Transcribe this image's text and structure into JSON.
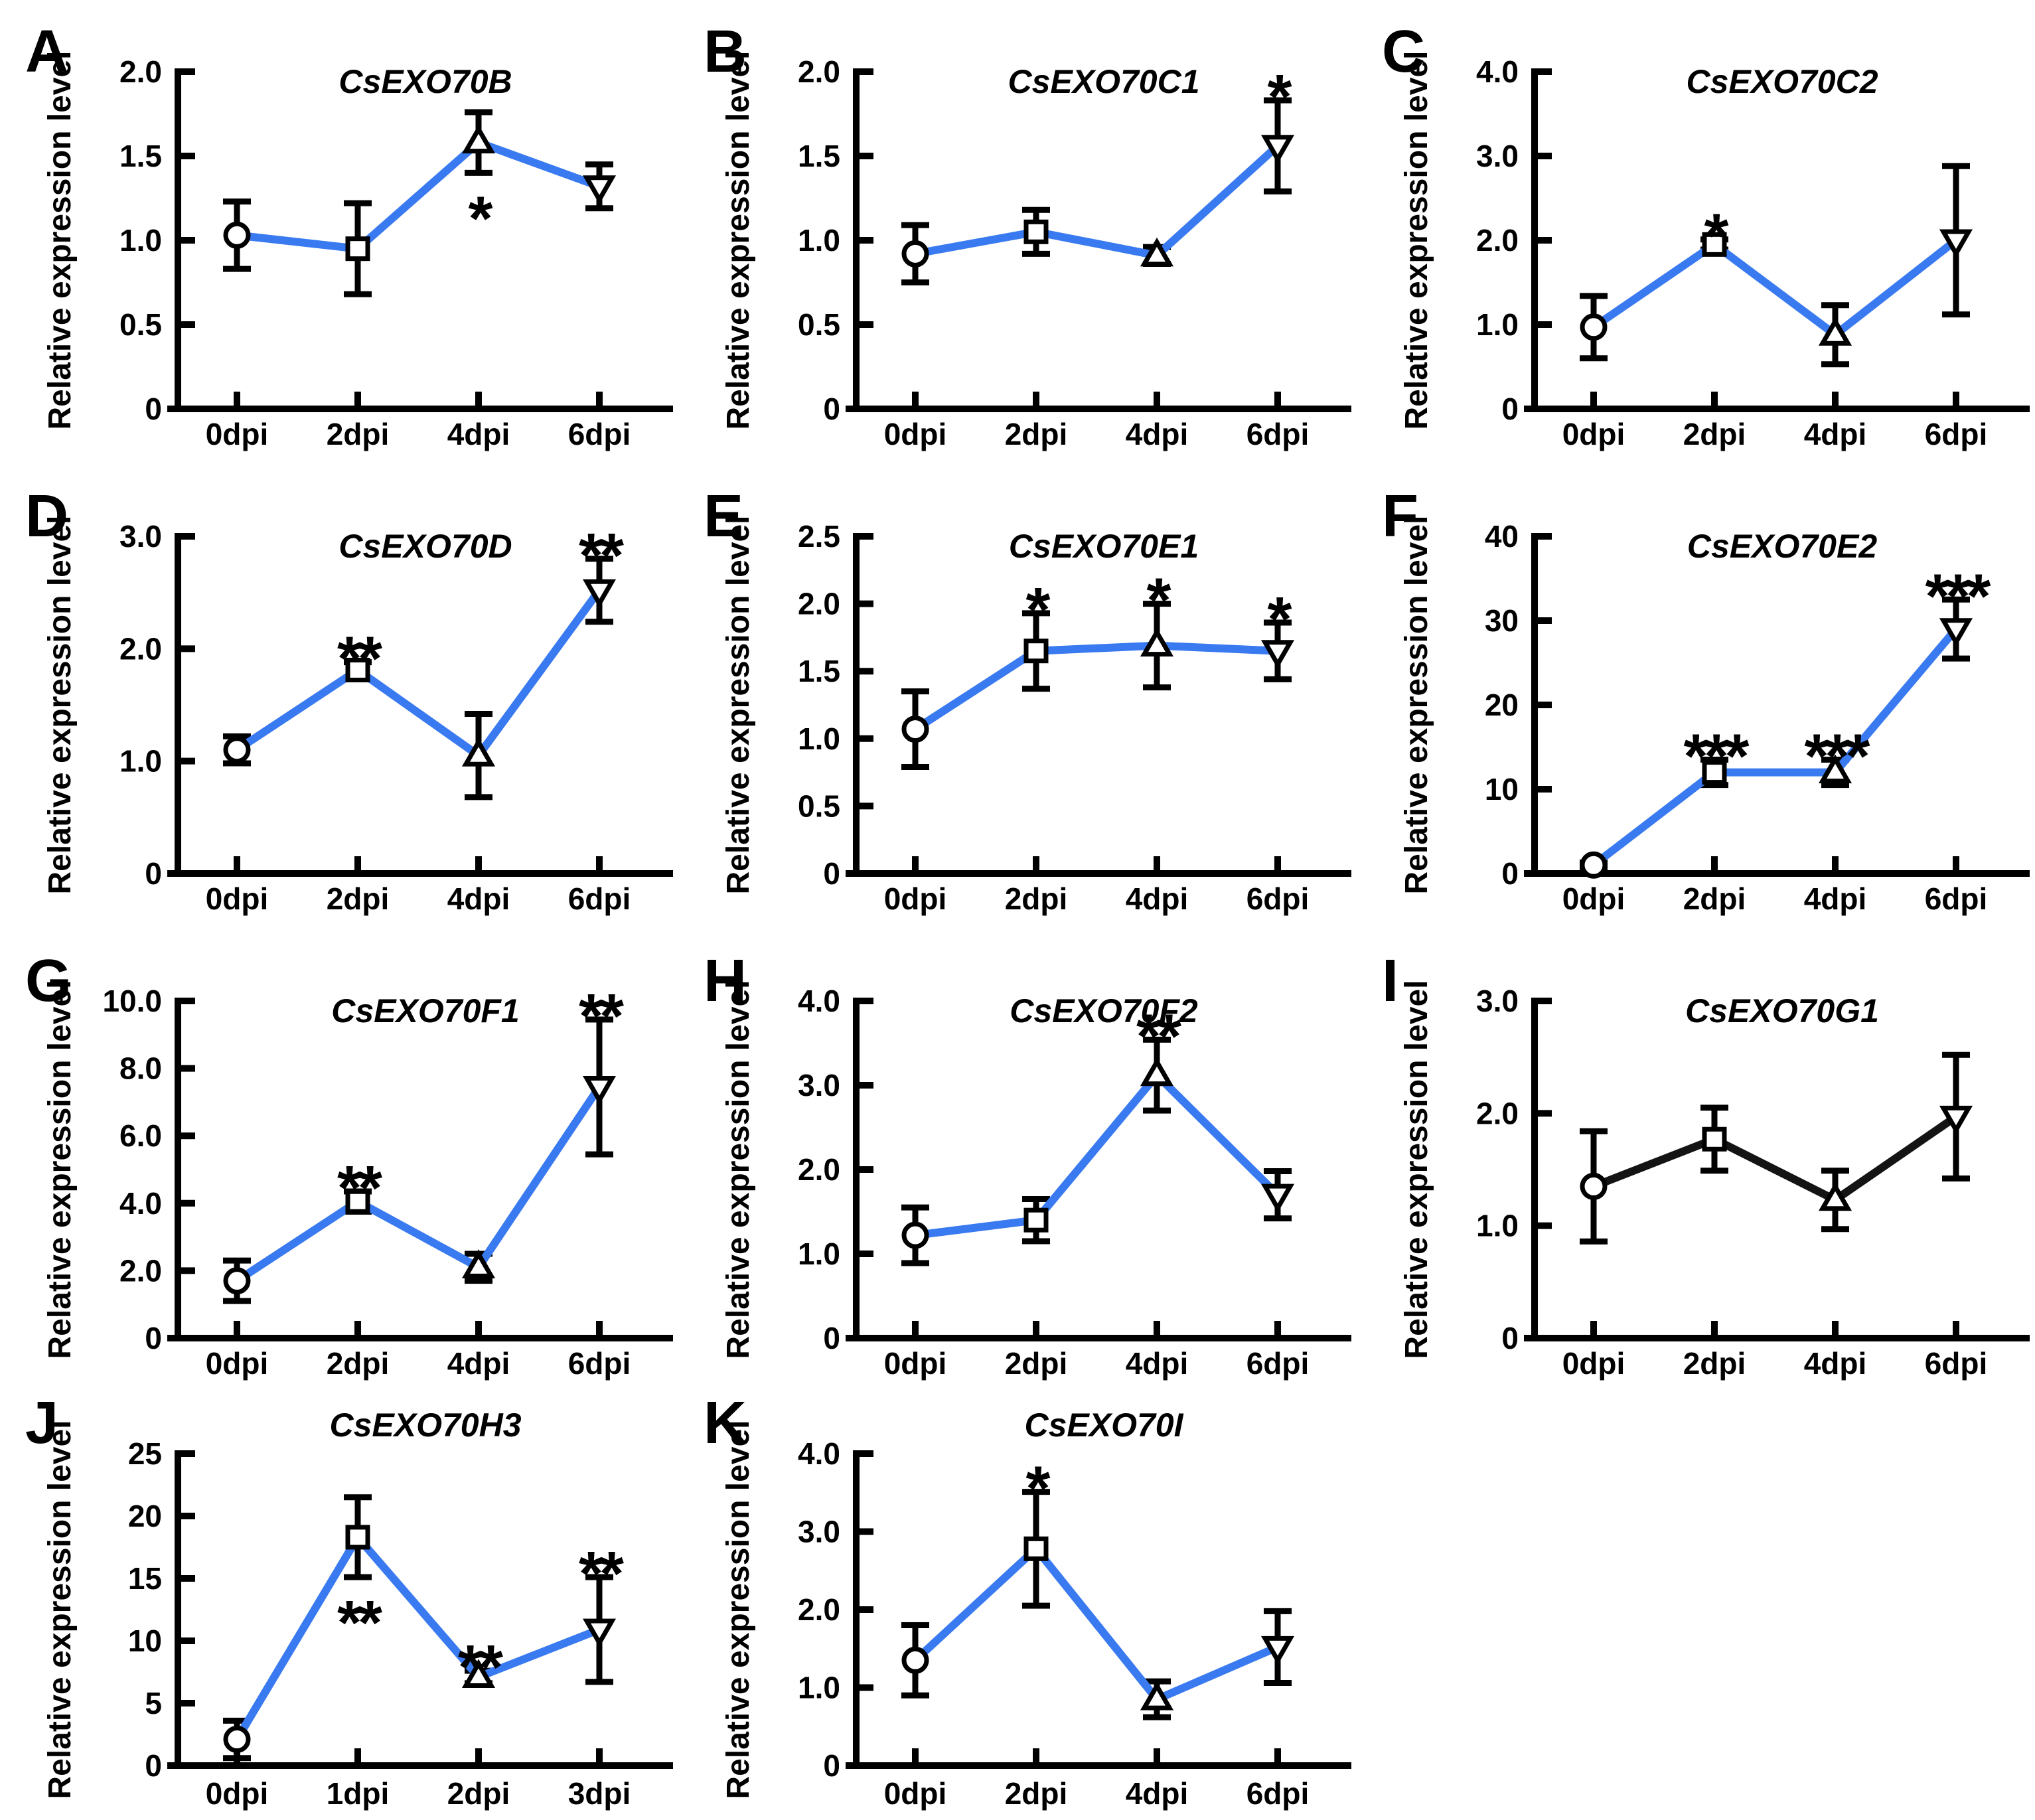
{
  "figure": {
    "ylabel": "Relative expression level",
    "background": "#ffffff"
  },
  "colors": {
    "line_blue": "#3A7AF0",
    "line_black": "#141414",
    "axis_black": "#000000",
    "marker_fill": "#ffffff",
    "text_black": "#000000"
  },
  "marker_icons": [
    "circle-marker-icon",
    "square-marker-icon",
    "triangle-up-marker-icon",
    "triangle-down-marker-icon"
  ],
  "chart_data": [
    {
      "type": "line",
      "panel": "A",
      "title": "CsEXO70B",
      "categories": [
        "0dpi",
        "2dpi",
        "4dpi",
        "6dpi"
      ],
      "values": [
        1.03,
        0.95,
        1.58,
        1.32
      ],
      "errors": [
        0.2,
        0.27,
        0.18,
        0.13
      ],
      "ylim": [
        0,
        2.0
      ],
      "yticks": [
        0,
        0.5,
        1.0,
        1.5,
        2.0
      ],
      "ytick_labels": [
        "0",
        "0.5",
        "1.0",
        "1.5",
        "2.0"
      ],
      "significance": [
        "",
        "",
        "*",
        ""
      ],
      "sig_side": [
        "",
        "",
        "below",
        ""
      ],
      "line_color": "blue",
      "grid": false,
      "legend": "none"
    },
    {
      "type": "line",
      "panel": "B",
      "title": "CsEXO70C1",
      "categories": [
        "0dpi",
        "2dpi",
        "4dpi",
        "6dpi"
      ],
      "values": [
        0.92,
        1.05,
        0.91,
        1.56
      ],
      "errors": [
        0.17,
        0.13,
        0.05,
        0.27
      ],
      "ylim": [
        0,
        2.0
      ],
      "yticks": [
        0,
        0.5,
        1.0,
        1.5,
        2.0
      ],
      "ytick_labels": [
        "0",
        "0.5",
        "1.0",
        "1.5",
        "2.0"
      ],
      "significance": [
        "",
        "",
        "",
        "*"
      ],
      "sig_side": [
        "",
        "",
        "",
        "above"
      ],
      "line_color": "blue",
      "grid": false,
      "legend": "none"
    },
    {
      "type": "line",
      "panel": "C",
      "title": "CsEXO70C2",
      "categories": [
        "0dpi",
        "2dpi",
        "4dpi",
        "6dpi"
      ],
      "values": [
        0.97,
        1.95,
        0.88,
        2.0
      ],
      "errors": [
        0.37,
        0.06,
        0.35,
        0.88
      ],
      "ylim": [
        0,
        4.0
      ],
      "yticks": [
        0,
        1.0,
        2.0,
        3.0,
        4.0
      ],
      "ytick_labels": [
        "0",
        "1.0",
        "2.0",
        "3.0",
        "4.0"
      ],
      "significance": [
        "",
        "*",
        "",
        ""
      ],
      "sig_side": [
        "",
        "above",
        "",
        ""
      ],
      "line_color": "blue",
      "grid": false,
      "legend": "none"
    },
    {
      "type": "line",
      "panel": "D",
      "title": "CsEXO70D",
      "categories": [
        "0dpi",
        "2dpi",
        "4dpi",
        "6dpi"
      ],
      "values": [
        1.1,
        1.81,
        1.05,
        2.52
      ],
      "errors": [
        0.12,
        0.07,
        0.37,
        0.28
      ],
      "ylim": [
        0,
        3.0
      ],
      "yticks": [
        0,
        1.0,
        2.0,
        3.0
      ],
      "ytick_labels": [
        "0",
        "1.0",
        "2.0",
        "3.0"
      ],
      "significance": [
        "",
        "**",
        "",
        "**"
      ],
      "sig_side": [
        "",
        "above",
        "",
        "above"
      ],
      "line_color": "blue",
      "grid": false,
      "legend": "none"
    },
    {
      "type": "line",
      "panel": "E",
      "title": "CsEXO70E1",
      "categories": [
        "0dpi",
        "2dpi",
        "4dpi",
        "6dpi"
      ],
      "values": [
        1.07,
        1.65,
        1.69,
        1.65
      ],
      "errors": [
        0.28,
        0.28,
        0.31,
        0.21
      ],
      "ylim": [
        0,
        2.5
      ],
      "yticks": [
        0,
        0.5,
        1.0,
        1.5,
        2.0,
        2.5
      ],
      "ytick_labels": [
        "0",
        "0.5",
        "1.0",
        "1.5",
        "2.0",
        "2.5"
      ],
      "significance": [
        "",
        "*",
        "*",
        "*"
      ],
      "sig_side": [
        "",
        "above",
        "above",
        "above"
      ],
      "line_color": "blue",
      "grid": false,
      "legend": "none"
    },
    {
      "type": "line",
      "panel": "F",
      "title": "CsEXO70E2",
      "categories": [
        "0dpi",
        "2dpi",
        "4dpi",
        "6dpi"
      ],
      "values": [
        1.0,
        12.0,
        12.0,
        29.0
      ],
      "errors": [
        0.3,
        1.5,
        1.5,
        3.5
      ],
      "ylim": [
        0,
        40
      ],
      "yticks": [
        0,
        10,
        20,
        30,
        40
      ],
      "ytick_labels": [
        "0",
        "10",
        "20",
        "30",
        "40"
      ],
      "significance": [
        "",
        "***",
        "***",
        "***"
      ],
      "sig_side": [
        "",
        "above",
        "above",
        "above"
      ],
      "line_color": "blue",
      "grid": false,
      "legend": "none"
    },
    {
      "type": "line",
      "panel": "G",
      "title": "CsEXO70F1",
      "categories": [
        "0dpi",
        "2dpi",
        "4dpi",
        "6dpi"
      ],
      "values": [
        1.7,
        4.05,
        2.1,
        7.45
      ],
      "errors": [
        0.6,
        0.3,
        0.4,
        2.0
      ],
      "ylim": [
        0,
        10.0
      ],
      "yticks": [
        0,
        2.0,
        4.0,
        6.0,
        8.0,
        10.0
      ],
      "ytick_labels": [
        "0",
        "2.0",
        "4.0",
        "6.0",
        "8.0",
        "10.0"
      ],
      "significance": [
        "",
        "**",
        "",
        "**"
      ],
      "sig_side": [
        "",
        "above",
        "",
        "above"
      ],
      "line_color": "blue",
      "grid": false,
      "legend": "none"
    },
    {
      "type": "line",
      "panel": "H",
      "title": "CsEXO70F2",
      "categories": [
        "0dpi",
        "2dpi",
        "4dpi",
        "6dpi"
      ],
      "values": [
        1.22,
        1.4,
        3.12,
        1.7
      ],
      "errors": [
        0.33,
        0.25,
        0.42,
        0.28
      ],
      "ylim": [
        0,
        4.0
      ],
      "yticks": [
        0,
        1.0,
        2.0,
        3.0,
        4.0
      ],
      "ytick_labels": [
        "0",
        "1.0",
        "2.0",
        "3.0",
        "4.0"
      ],
      "significance": [
        "",
        "",
        "**",
        ""
      ],
      "sig_side": [
        "",
        "",
        "above",
        ""
      ],
      "line_color": "blue",
      "grid": false,
      "legend": "none"
    },
    {
      "type": "line",
      "panel": "I",
      "title": "CsEXO70G1",
      "categories": [
        "0dpi",
        "2dpi",
        "4dpi",
        "6dpi"
      ],
      "values": [
        1.35,
        1.77,
        1.23,
        1.97
      ],
      "errors": [
        0.49,
        0.28,
        0.26,
        0.55
      ],
      "ylim": [
        0,
        3.0
      ],
      "yticks": [
        0,
        1.0,
        2.0,
        3.0
      ],
      "ytick_labels": [
        "0",
        "1.0",
        "2.0",
        "3.0"
      ],
      "significance": [
        "",
        "",
        "",
        ""
      ],
      "sig_side": [
        "",
        "",
        "",
        ""
      ],
      "line_color": "black",
      "grid": false,
      "legend": "none"
    },
    {
      "type": "line",
      "panel": "J",
      "title": "CsEXO70H3",
      "categories": [
        "0dpi",
        "1dpi",
        "2dpi",
        "3dpi"
      ],
      "values": [
        2.1,
        18.3,
        7.1,
        10.9
      ],
      "errors": [
        1.5,
        3.2,
        0.5,
        4.2
      ],
      "ylim": [
        0,
        25
      ],
      "yticks": [
        0,
        5,
        10,
        15,
        20,
        25
      ],
      "ytick_labels": [
        "0",
        "5",
        "10",
        "15",
        "20",
        "25"
      ],
      "significance": [
        "",
        "**",
        "**",
        "**"
      ],
      "sig_side": [
        "",
        "below",
        "above",
        "above"
      ],
      "line_color": "blue",
      "grid": false,
      "legend": "none"
    },
    {
      "type": "line",
      "panel": "K",
      "title": "CsEXO70I",
      "categories": [
        "0dpi",
        "2dpi",
        "4dpi",
        "6dpi"
      ],
      "values": [
        1.35,
        2.78,
        0.85,
        1.52
      ],
      "errors": [
        0.45,
        0.73,
        0.23,
        0.46
      ],
      "ylim": [
        0,
        4.0
      ],
      "yticks": [
        0,
        1.0,
        2.0,
        3.0,
        4.0
      ],
      "ytick_labels": [
        "0",
        "1.0",
        "2.0",
        "3.0",
        "4.0"
      ],
      "significance": [
        "",
        "*",
        "",
        ""
      ],
      "sig_side": [
        "",
        "above",
        "",
        ""
      ],
      "line_color": "blue",
      "grid": false,
      "legend": "none"
    }
  ],
  "panel_layout_letters": [
    "A",
    "B",
    "C",
    "D",
    "E",
    "F",
    "G",
    "H",
    "I",
    "J",
    "K"
  ]
}
